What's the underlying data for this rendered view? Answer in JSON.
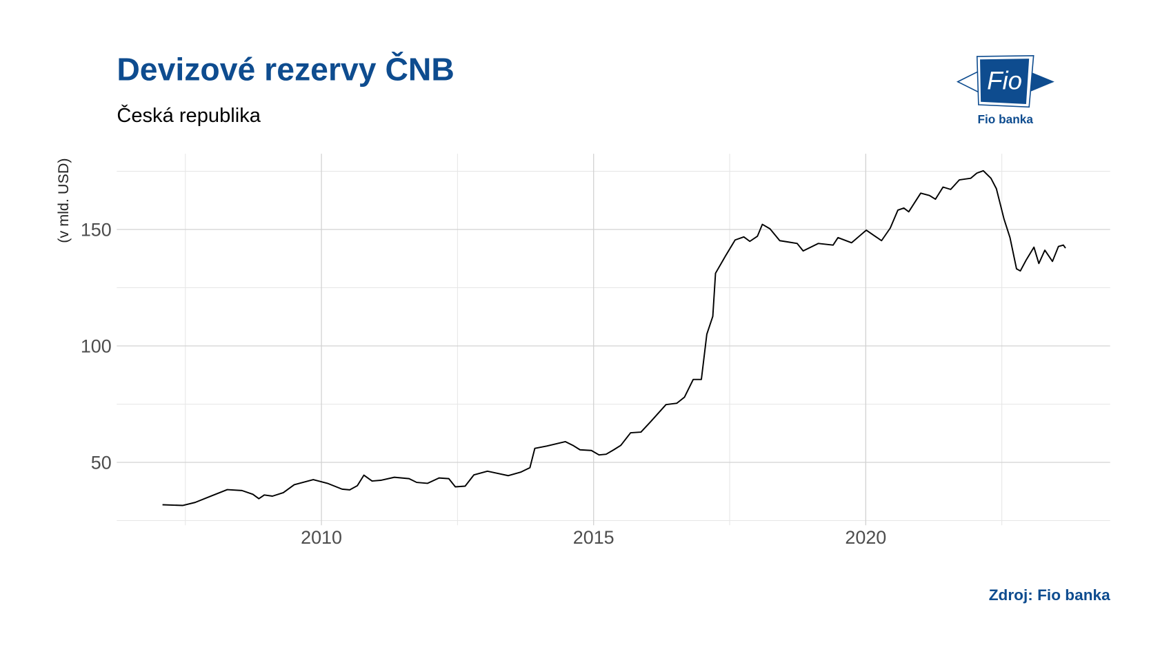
{
  "chart_data": {
    "type": "line",
    "title": "Devizové rezervy ČNB",
    "subtitle": "Česká republika",
    "y_label": "(v mld. USD)",
    "source": "Zdroj: Fio banka",
    "xlim": [
      2006.24,
      2024.49
    ],
    "ylim": [
      23,
      182.5
    ],
    "xticks": [
      2010,
      2015,
      2020
    ],
    "yticks": [
      50,
      100,
      150
    ],
    "minor_xticks": [
      2007.5,
      2012.5,
      2017.5,
      2022.5
    ],
    "minor_yticks": [
      25,
      75,
      125,
      175
    ],
    "grid": true,
    "series": [
      {
        "color": "#000000",
        "x": [
          2007.08,
          2007.45,
          2007.68,
          2007.99,
          2008.27,
          2008.54,
          2008.74,
          2008.85,
          2008.95,
          2009.1,
          2009.3,
          2009.5,
          2009.85,
          2010.11,
          2010.38,
          2010.52,
          2010.66,
          2010.78,
          2010.93,
          2011.09,
          2011.34,
          2011.61,
          2011.75,
          2011.95,
          2012.16,
          2012.34,
          2012.46,
          2012.64,
          2012.8,
          2013.05,
          2013.25,
          2013.43,
          2013.66,
          2013.83,
          2013.92,
          2014.14,
          2014.48,
          2014.62,
          2014.75,
          2014.96,
          2015.1,
          2015.23,
          2015.37,
          2015.5,
          2015.68,
          2015.87,
          2016.05,
          2016.33,
          2016.53,
          2016.67,
          2016.83,
          2016.98,
          2017.08,
          2017.19,
          2017.24,
          2017.42,
          2017.6,
          2017.76,
          2017.87,
          2018.01,
          2018.1,
          2018.24,
          2018.42,
          2018.58,
          2018.74,
          2018.85,
          2019.13,
          2019.4,
          2019.49,
          2019.74,
          2019.88,
          2020.01,
          2020.29,
          2020.45,
          2020.59,
          2020.7,
          2020.79,
          2021.01,
          2021.17,
          2021.28,
          2021.42,
          2021.56,
          2021.72,
          2021.93,
          2022.04,
          2022.16,
          2022.3,
          2022.4,
          2022.54,
          2022.65,
          2022.77,
          2022.84,
          2022.95,
          2023.09,
          2023.18,
          2023.29,
          2023.43,
          2023.54,
          2023.63,
          2023.67
        ],
        "values": [
          31.8,
          31.5,
          32.8,
          35.7,
          38.3,
          37.9,
          36.3,
          34.4,
          36.0,
          35.5,
          37.0,
          40.4,
          42.6,
          41.0,
          38.5,
          38.2,
          40.0,
          44.5,
          42.0,
          42.3,
          43.6,
          43.0,
          41.4,
          41.0,
          43.3,
          43.0,
          39.5,
          39.8,
          44.6,
          46.2,
          45.2,
          44.3,
          45.8,
          47.7,
          56.0,
          57.0,
          58.9,
          57.3,
          55.4,
          55.1,
          53.2,
          53.5,
          55.4,
          57.3,
          62.7,
          63.0,
          67.5,
          74.8,
          75.4,
          78.0,
          85.6,
          85.6,
          105.0,
          112.7,
          131.2,
          138.5,
          145.5,
          146.8,
          144.9,
          147.1,
          152.2,
          150.3,
          145.2,
          144.6,
          144.0,
          140.8,
          144.0,
          143.3,
          146.5,
          144.3,
          147.1,
          149.7,
          145.2,
          150.6,
          158.3,
          159.2,
          157.6,
          165.6,
          164.6,
          163.0,
          168.2,
          167.2,
          171.3,
          172.0,
          174.2,
          175.2,
          172.0,
          167.5,
          154.5,
          146.5,
          133.1,
          132.2,
          137.0,
          142.4,
          135.4,
          141.1,
          136.3,
          142.7,
          143.3,
          142.0
        ]
      }
    ]
  },
  "logo": {
    "mark": "Fio",
    "caption": "Fio banka"
  }
}
